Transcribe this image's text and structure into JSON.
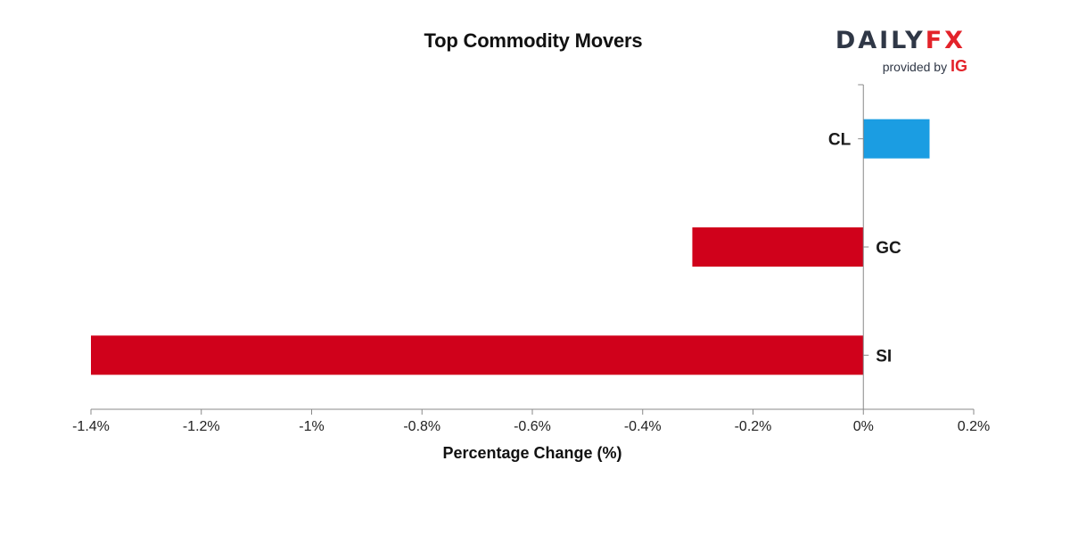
{
  "logo": {
    "brand_left": "DAILY",
    "brand_right": "FX",
    "provided_by": "provided by",
    "provider": "IG"
  },
  "colors": {
    "positive": "#1b9de2",
    "negative": "#d0011b",
    "axis": "#888888",
    "text": "#111111"
  },
  "chart_data": {
    "type": "bar",
    "orientation": "horizontal",
    "title": "Top Commodity Movers",
    "xlabel": "Percentage Change (%)",
    "ylabel": "",
    "xlim": [
      -1.4,
      0.2
    ],
    "xticks": [
      -1.4,
      -1.2,
      -1.0,
      -0.8,
      -0.6,
      -0.4,
      -0.2,
      0,
      0.2
    ],
    "xtick_labels": [
      "-1.4%",
      "-1.2%",
      "-1%",
      "-0.8%",
      "-0.6%",
      "-0.4%",
      "-0.2%",
      "0%",
      "0.2%"
    ],
    "categories": [
      "CL",
      "GC",
      "SI"
    ],
    "values": [
      0.12,
      -0.31,
      -1.4
    ],
    "grid": false,
    "legend": "none"
  }
}
